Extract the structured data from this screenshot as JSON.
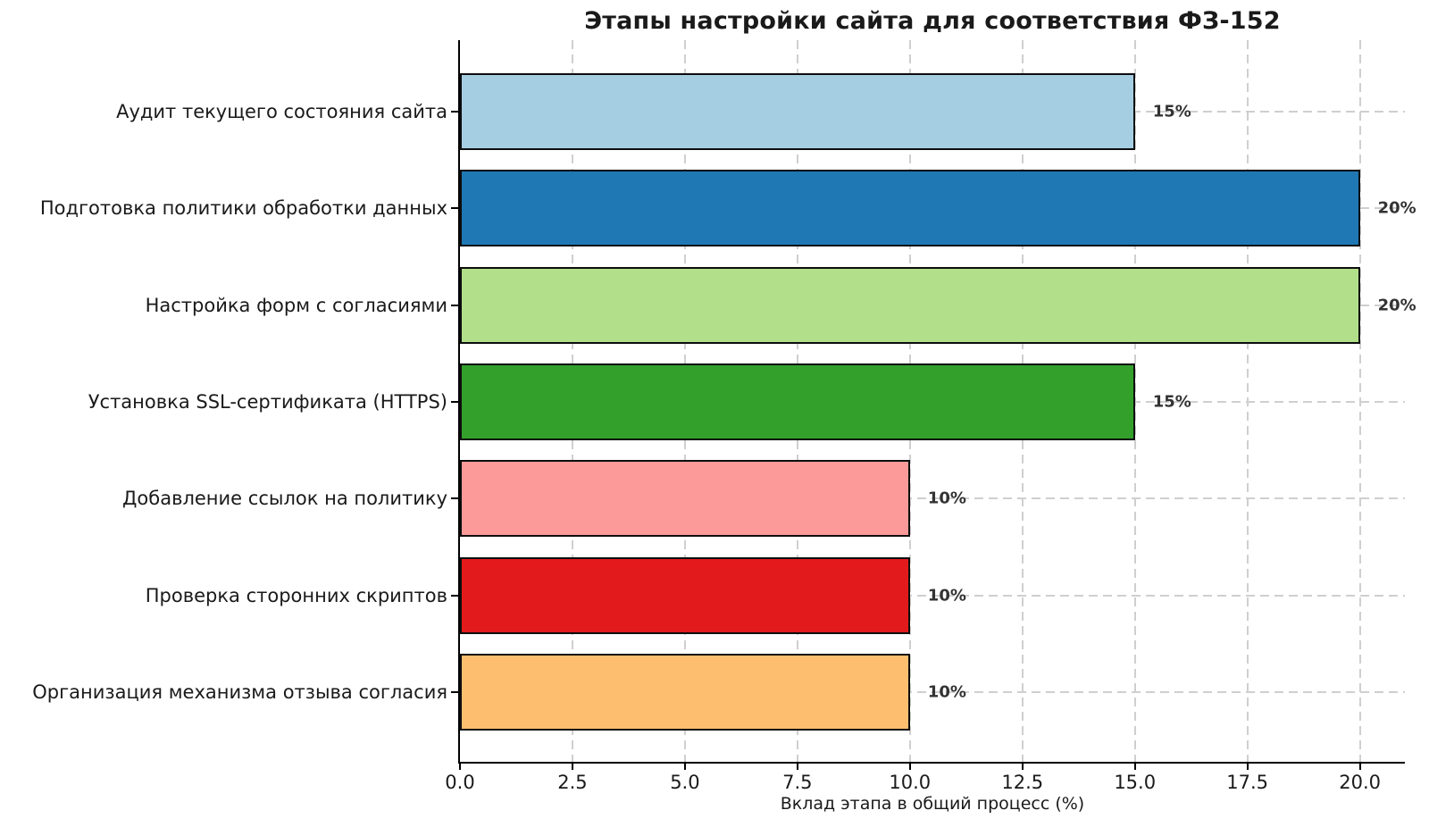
{
  "figure": {
    "background": "#ffffff"
  },
  "chart_data": {
    "type": "bar",
    "orientation": "horizontal",
    "title": "Этапы настройки сайта для соответствия ФЗ-152",
    "xlabel": "Вклад этапа в общий процесс (%)",
    "ylabel": "",
    "xlim": [
      0,
      21
    ],
    "grid": true,
    "legend": false,
    "xticks": [
      0,
      2.5,
      5,
      7.5,
      10,
      12.5,
      15,
      17.5,
      20
    ],
    "xtick_labels": [
      "0.0",
      "2.5",
      "5.0",
      "7.5",
      "10.0",
      "12.5",
      "15.0",
      "17.5",
      "20.0"
    ],
    "categories": [
      "Аудит текущего состояния сайта",
      "Подготовка политики обработки данных",
      "Настройка форм с согласиями",
      "Установка SSL-сертификата (HTTPS)",
      "Добавление ссылок на политику",
      "Проверка сторонних скриптов",
      "Организация механизма отзыва согласия"
    ],
    "values": [
      15,
      20,
      20,
      15,
      10,
      10,
      10
    ],
    "value_labels": [
      "15%",
      "20%",
      "20%",
      "15%",
      "10%",
      "10%",
      "10%"
    ],
    "bar_colors": [
      "#a6cee3",
      "#1f78b4",
      "#b2df8a",
      "#33a02c",
      "#fb9a99",
      "#e31a1c",
      "#fdbf6f"
    ],
    "styles": {
      "background": "#ffffff",
      "grid_color": "#cfcfcf",
      "axis_color": "#000000",
      "text_color": "#1a1a1a",
      "value_label_color": "#333333",
      "bar_edge_color": "#0d0d0d"
    }
  }
}
